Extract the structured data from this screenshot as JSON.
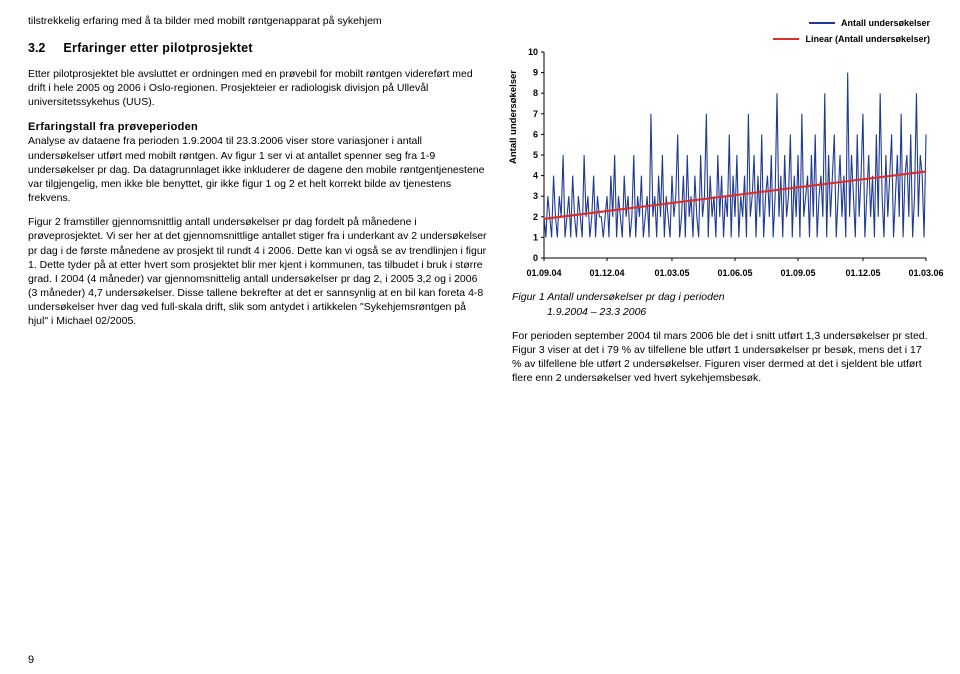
{
  "left": {
    "intro": "tilstrekkelig erfaring med å ta bilder med mobilt røntgenapparat på sykehjem",
    "heading_num": "3.2",
    "heading_txt": "Erfaringer etter pilotprosjektet",
    "p1": "Etter pilotprosjektet ble avsluttet er ordningen med en prøvebil for mobilt røntgen videreført med drift i hele 2005 og 2006 i Oslo-regionen. Prosjekteier er radiologisk divisjon på Ullevål universitetssykehus (UUS).",
    "sub": "Erfaringstall fra prøveperioden",
    "p2": "Analyse av dataene fra perioden 1.9.2004 til 23.3.2006 viser store variasjoner i antall undersøkelser utført med mobilt røntgen. Av figur 1 ser vi at antallet spenner seg fra 1-9 undersøkelser pr dag. Da datagrunnlaget ikke inkluderer de dagene den mobile røntgentjenestene var tilgjengelig, men ikke ble benyttet, gir ikke figur 1 og 2 et helt korrekt bilde av tjenestens frekvens.",
    "p3": "Figur 2 framstiller gjennomsnittlig antall undersøkelser pr dag fordelt på månedene i prøveprosjektet. Vi ser her at det gjennomsnittlige antallet stiger fra i underkant av 2 undersøkelser pr dag i de første månedene av prosjekt til rundt 4 i 2006. Dette kan vi også se av trendlinjen i figur 1. Dette tyder på at etter hvert som prosjektet blir mer kjent i kommunen, tas tilbudet i bruk i større grad. I 2004 (4 måneder) var gjennomsnittelig antall undersøkelser pr dag 2, i 2005 3,2 og i 2006 (3 måneder) 4,7 undersøkelser. Disse tallene bekrefter at det er sannsynlig at en bil kan foreta 4-8 undersøkelser hver dag ved full-skala drift, slik som antydet i artikkelen \"Sykehjemsrøntgen på hjul\" i Michael 02/2005."
  },
  "right": {
    "legend": {
      "series": "Antall undersøkelser",
      "trend": "Linear (Antall undersøkelser)",
      "series_color": "#1f3a93",
      "trend_color": "#d9302c"
    },
    "chart": {
      "type": "line",
      "ylabel": "Antall undersøkelser",
      "ylim": [
        0,
        10
      ],
      "yticks": [
        0,
        1,
        2,
        3,
        4,
        5,
        6,
        7,
        8,
        9,
        10
      ],
      "xlim": [
        0,
        200
      ],
      "xticks": [
        {
          "pos": 0,
          "label": "01.09.04"
        },
        {
          "pos": 33,
          "label": "01.12.04"
        },
        {
          "pos": 67,
          "label": "01.03.05"
        },
        {
          "pos": 100,
          "label": "01.06.05"
        },
        {
          "pos": 133,
          "label": "01.09.05"
        },
        {
          "pos": 167,
          "label": "01.12.05"
        },
        {
          "pos": 200,
          "label": "01.03.06"
        }
      ],
      "line_color": "#1f3a93",
      "line_width": 1.1,
      "trend_color": "#d9302c",
      "trend_width": 2.2,
      "trend_y0": 1.9,
      "trend_y1": 4.2,
      "grid": false,
      "background_color": "#ffffff",
      "values": [
        2,
        1,
        3,
        2,
        1,
        4,
        2,
        1,
        3,
        2,
        5,
        1,
        2,
        3,
        1,
        4,
        2,
        1,
        3,
        2,
        1,
        5,
        2,
        3,
        1,
        2,
        4,
        1,
        3,
        2,
        2,
        1,
        2,
        3,
        1,
        4,
        2,
        5,
        1,
        3,
        2,
        1,
        4,
        2,
        3,
        1,
        2,
        5,
        1,
        3,
        2,
        4,
        1,
        2,
        3,
        1,
        7,
        2,
        3,
        1,
        4,
        2,
        5,
        1,
        3,
        2,
        1,
        4,
        2,
        3,
        6,
        1,
        2,
        4,
        1,
        5,
        2,
        3,
        1,
        4,
        2,
        1,
        5,
        2,
        3,
        7,
        1,
        4,
        2,
        3,
        1,
        5,
        2,
        4,
        1,
        3,
        2,
        6,
        1,
        4,
        2,
        5,
        1,
        3,
        2,
        4,
        1,
        7,
        2,
        3,
        5,
        1,
        4,
        2,
        6,
        1,
        3,
        4,
        2,
        5,
        1,
        3,
        8,
        2,
        4,
        1,
        5,
        2,
        3,
        6,
        1,
        4,
        2,
        5,
        1,
        7,
        2,
        3,
        4,
        1,
        5,
        2,
        6,
        1,
        3,
        4,
        2,
        8,
        1,
        5,
        2,
        4,
        6,
        1,
        3,
        5,
        2,
        4,
        1,
        9,
        2,
        5,
        3,
        1,
        6,
        2,
        4,
        7,
        1,
        3,
        5,
        2,
        4,
        1,
        6,
        2,
        8,
        3,
        1,
        5,
        2,
        4,
        6,
        1,
        3,
        5,
        2,
        7,
        1,
        4,
        5,
        2,
        6,
        1,
        3,
        8,
        2,
        5,
        4,
        1,
        6
      ]
    },
    "caption_l1": "Figur 1 Antall undersøkelser pr dag i perioden",
    "caption_l2": "1.9.2004 – 23.3 2006",
    "p1": "For perioden september 2004 til mars 2006 ble det i snitt utført 1,3 undersøkelser pr sted. Figur 3 viser at det i 79 % av tilfellene ble utført 1 undersøkelser pr besøk, mens det i 17 % av tilfellene ble utført 2 undersøkelser. Figuren viser dermed at det i sjeldent ble utført flere enn 2 undersøkelser ved hvert sykehjemsbesøk."
  },
  "page_number": "9"
}
